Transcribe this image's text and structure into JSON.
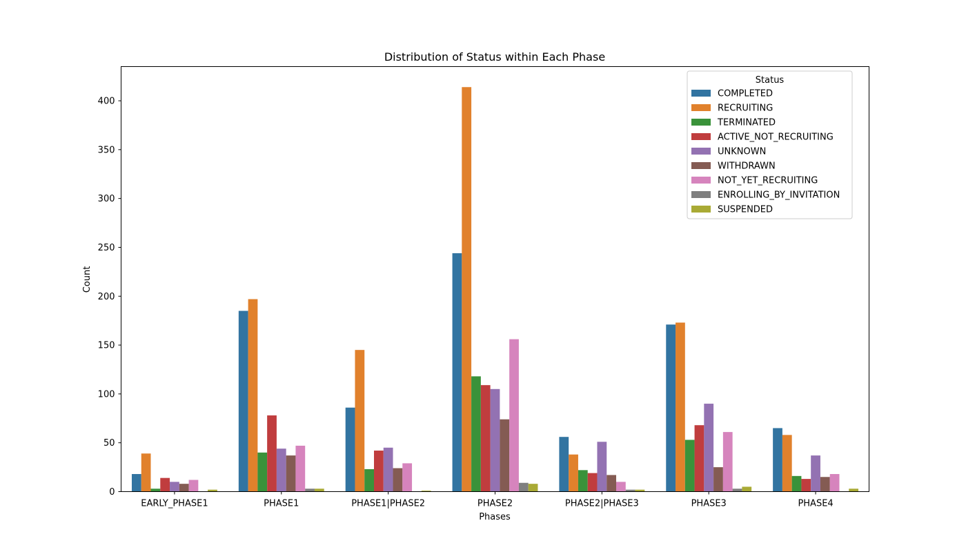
{
  "chart_data": {
    "type": "bar",
    "title": "Distribution of Status within Each Phase",
    "xlabel": "Phases",
    "ylabel": "Count",
    "ylim": [
      0,
      435
    ],
    "yticks": [
      "0",
      "50",
      "100",
      "150",
      "200",
      "250",
      "300",
      "350",
      "400"
    ],
    "grid": false,
    "legend": {
      "title": "Status",
      "placement": "top-right"
    },
    "categories": [
      "EARLY_PHASE1",
      "PHASE1",
      "PHASE1|PHASE2",
      "PHASE2",
      "PHASE2|PHASE3",
      "PHASE3",
      "PHASE4"
    ],
    "series": [
      {
        "name": "COMPLETED",
        "color": "#3274a1",
        "values": [
          18,
          185,
          86,
          244,
          56,
          171,
          65
        ]
      },
      {
        "name": "RECRUITING",
        "color": "#e1812c",
        "values": [
          39,
          197,
          145,
          414,
          38,
          173,
          58
        ]
      },
      {
        "name": "TERMINATED",
        "color": "#3a923a",
        "values": [
          3,
          40,
          23,
          118,
          22,
          53,
          16
        ]
      },
      {
        "name": "ACTIVE_NOT_RECRUITING",
        "color": "#c03d3e",
        "values": [
          14,
          78,
          42,
          109,
          19,
          68,
          13
        ]
      },
      {
        "name": "UNKNOWN",
        "color": "#9372b2",
        "values": [
          10,
          44,
          45,
          105,
          51,
          90,
          37
        ]
      },
      {
        "name": "WITHDRAWN",
        "color": "#845b53",
        "values": [
          8,
          37,
          24,
          74,
          17,
          25,
          15
        ]
      },
      {
        "name": "NOT_YET_RECRUITING",
        "color": "#d684bd",
        "values": [
          12,
          47,
          29,
          156,
          10,
          61,
          18
        ]
      },
      {
        "name": "ENROLLING_BY_INVITATION",
        "color": "#7f7f7f",
        "values": [
          0,
          3,
          0,
          9,
          2,
          3,
          0
        ]
      },
      {
        "name": "SUSPENDED",
        "color": "#a9aa35",
        "values": [
          2,
          3,
          1,
          8,
          2,
          5,
          3
        ]
      }
    ]
  }
}
